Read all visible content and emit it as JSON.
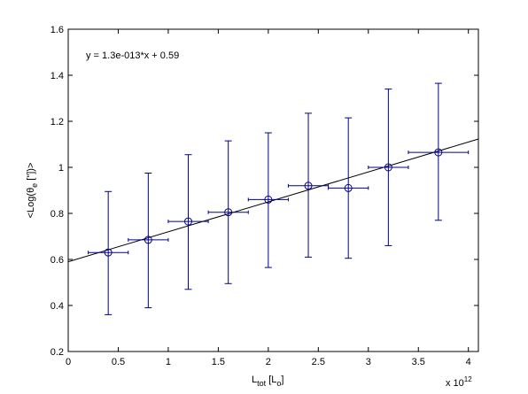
{
  "chart_data": {
    "type": "scatter",
    "title": "",
    "xlabel": {
      "main": "L",
      "sub": "tot",
      "rest": " [L",
      "sub2": "o",
      "end": "]"
    },
    "ylabel": {
      "pre": "<Log(θ",
      "sub": "e",
      "post": " [\"])>"
    },
    "x_multiplier": "x 10",
    "x_multiplier_exp": "12",
    "xlim": [
      0,
      4.1
    ],
    "ylim": [
      0.2,
      1.6
    ],
    "x_ticks": [
      0,
      0.5,
      1,
      1.5,
      2,
      2.5,
      3,
      3.5,
      4
    ],
    "x_tick_labels": [
      "0",
      "0.5",
      "1",
      "1.5",
      "2",
      "2.5",
      "3",
      "3.5",
      "4"
    ],
    "y_ticks": [
      0.2,
      0.4,
      0.6,
      0.8,
      1.0,
      1.2,
      1.4,
      1.6
    ],
    "y_tick_labels": [
      "0.2",
      "0.4",
      "0.6",
      "0.8",
      "1",
      "1.2",
      "1.4",
      "1.6"
    ],
    "grid": false,
    "annotation": "y = 1.3e-013*x + 0.59",
    "fit_line": {
      "slope": 0.13,
      "intercept": 0.59,
      "color": "#000000"
    },
    "series": [
      {
        "color": "#00008b",
        "x": [
          0.4,
          0.8,
          1.2,
          1.6,
          2.0,
          2.4,
          2.8,
          3.2,
          3.7
        ],
        "y": [
          0.63,
          0.685,
          0.765,
          0.805,
          0.86,
          0.92,
          0.91,
          1.0,
          1.065
        ],
        "y_lower": [
          0.36,
          0.39,
          0.47,
          0.495,
          0.565,
          0.61,
          0.605,
          0.66,
          0.77
        ],
        "y_upper": [
          0.895,
          0.975,
          1.055,
          1.115,
          1.15,
          1.235,
          1.215,
          1.34,
          1.365
        ],
        "x_lower": [
          0.2,
          0.6,
          1.0,
          1.4,
          1.8,
          2.2,
          2.6,
          3.0,
          3.4
        ],
        "x_upper": [
          0.6,
          1.0,
          1.4,
          1.8,
          2.2,
          2.6,
          3.0,
          3.4,
          4.0
        ]
      }
    ]
  }
}
